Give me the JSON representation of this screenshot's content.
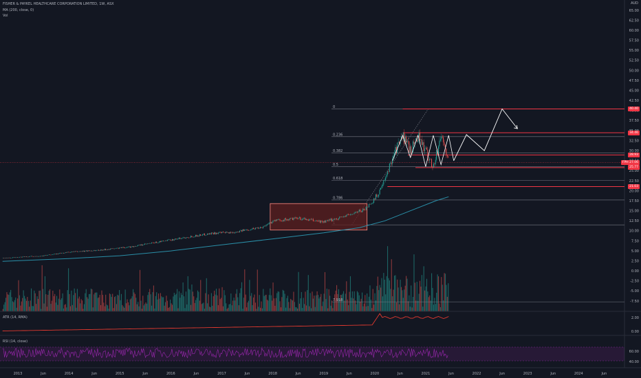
{
  "header": {
    "symbol_line": "FISHER & PAYKEL HEALTHCARE CORPORATION LIMITED, 1W, ASX",
    "ma_line": "MA (200, close, 0)",
    "vol_line": "Vol",
    "currency": "AUD"
  },
  "indicators": {
    "atr_label": "ATR (14, RMA)",
    "rsi_label": "RSI (14, close)"
  },
  "colors": {
    "bg": "#131722",
    "up": "#26a69a",
    "down": "#ef5350",
    "ma": "#2a8fa8",
    "level": "#f23645",
    "fib": "#787b86",
    "box": "#5d1f1f",
    "rsi": "#9c27b0",
    "atr": "#e0382f",
    "forecast": "#ffffff"
  },
  "chart_data": {
    "type": "candlestick",
    "x_ticks": [
      "2013",
      "Jun",
      "2014",
      "Jun",
      "2015",
      "Jun",
      "2016",
      "Jun",
      "2017",
      "Jun",
      "2018",
      "Jun",
      "2019",
      "Jun",
      "2020",
      "Jun",
      "2021",
      "Jun",
      "2022",
      "Jun",
      "2023",
      "Jun",
      "2024",
      "Jun"
    ],
    "price_axis": [
      "65.00",
      "62.50",
      "60.00",
      "57.50",
      "55.00",
      "52.50",
      "50.00",
      "47.50",
      "45.00",
      "42.50",
      "40.00",
      "37.50",
      "35.00",
      "32.50",
      "30.00",
      "27.50",
      "25.00",
      "22.50",
      "20.00",
      "17.50",
      "15.00",
      "12.50",
      "10.00",
      "7.50",
      "5.00",
      "2.50",
      "0.00",
      "-2.50",
      "-5.00",
      "-7.50"
    ],
    "price_tags": [
      {
        "label": "40.40",
        "value": 40.4
      },
      {
        "label": "34.46",
        "value": 34.46
      },
      {
        "label": "28.93",
        "value": 28.93
      },
      {
        "label": "27.06",
        "value": 27.06,
        "prefix": "FPH"
      },
      {
        "label": "25.77",
        "value": 25.77
      },
      {
        "label": "21.03",
        "value": 21.03
      }
    ],
    "fib_levels": [
      {
        "label": "0",
        "value": 40.4
      },
      {
        "label": "0.236",
        "value": 33.5
      },
      {
        "label": "0.382",
        "value": 29.4
      },
      {
        "label": "0.5",
        "value": 26.0
      },
      {
        "label": "0.618",
        "value": 22.6
      },
      {
        "label": "0.786",
        "value": 17.7
      },
      {
        "label": "1",
        "value": 11.5
      }
    ],
    "volume_note": "7.918",
    "atr_axis": [
      "2.00",
      "0.00"
    ],
    "rsi_axis": [
      "60.00",
      "40.00"
    ],
    "forecast_path": [
      [
        2021.55,
        27.5
      ],
      [
        2021.8,
        34.0
      ],
      [
        2022.15,
        30.0
      ],
      [
        2022.5,
        40.4
      ],
      [
        2022.8,
        35.5
      ]
    ],
    "price_anchors": [
      [
        2012.7,
        3.2
      ],
      [
        2013.5,
        3.8
      ],
      [
        2014.0,
        4.7
      ],
      [
        2014.6,
        5.2
      ],
      [
        2015.2,
        6.0
      ],
      [
        2015.7,
        7.1
      ],
      [
        2016.3,
        8.4
      ],
      [
        2016.8,
        9.4
      ],
      [
        2017.2,
        9.6
      ],
      [
        2017.8,
        11.0
      ],
      [
        2018.0,
        12.5
      ],
      [
        2018.5,
        13.1
      ],
      [
        2019.0,
        12.2
      ],
      [
        2019.5,
        14.0
      ],
      [
        2019.8,
        15.4
      ],
      [
        2020.0,
        18.0
      ],
      [
        2020.2,
        22.5
      ],
      [
        2020.35,
        29.0
      ],
      [
        2020.55,
        33.5
      ],
      [
        2020.7,
        30.0
      ],
      [
        2020.85,
        34.0
      ],
      [
        2021.0,
        29.5
      ],
      [
        2021.15,
        26.0
      ],
      [
        2021.3,
        34.0
      ],
      [
        2021.45,
        27.1
      ]
    ],
    "ma_anchors": [
      [
        2012.7,
        2.4
      ],
      [
        2014.0,
        3.1
      ],
      [
        2015.0,
        3.8
      ],
      [
        2016.0,
        5.0
      ],
      [
        2017.0,
        6.5
      ],
      [
        2018.0,
        8.0
      ],
      [
        2019.0,
        9.5
      ],
      [
        2019.7,
        10.8
      ],
      [
        2020.2,
        12.5
      ],
      [
        2020.7,
        15.0
      ],
      [
        2021.2,
        17.5
      ],
      [
        2021.45,
        18.5
      ]
    ]
  }
}
